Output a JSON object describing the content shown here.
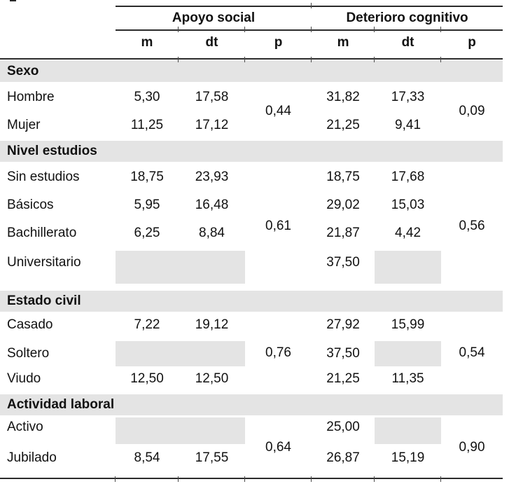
{
  "table": {
    "group_headers": [
      {
        "label": "Apoyo social"
      },
      {
        "label": "Deterioro cognitivo"
      }
    ],
    "sub_headers": [
      "m",
      "dt",
      "p",
      "m",
      "dt",
      "p"
    ],
    "colors": {
      "band_gray": "#e4e4e4",
      "rule": "#2b2b2b"
    },
    "sections": [
      {
        "title": "Sexo",
        "p_apoyo": "0,44",
        "p_deterioro": "0,09",
        "rows": [
          {
            "label": "Hombre",
            "apoyo_m": "5,30",
            "apoyo_dt": "17,58",
            "det_m": "31,82",
            "det_dt": "17,33"
          },
          {
            "label": "Mujer",
            "apoyo_m": "11,25",
            "apoyo_dt": "17,12",
            "det_m": "21,25",
            "det_dt": "9,41"
          }
        ]
      },
      {
        "title": "Nivel estudios",
        "p_apoyo": "0,61",
        "p_deterioro": "0,56",
        "rows": [
          {
            "label": "Sin estudios",
            "apoyo_m": "18,75",
            "apoyo_dt": "23,93",
            "det_m": "18,75",
            "det_dt": "17,68"
          },
          {
            "label": "Básicos",
            "apoyo_m": "5,95",
            "apoyo_dt": "16,48",
            "det_m": "29,02",
            "det_dt": "15,03"
          },
          {
            "label": "Bachillerato",
            "apoyo_m": "6,25",
            "apoyo_dt": "8,84",
            "det_m": "21,87",
            "det_dt": "4,42"
          },
          {
            "label": "Universitario",
            "apoyo_m": null,
            "apoyo_dt": null,
            "det_m": "37,50",
            "det_dt": null
          }
        ]
      },
      {
        "title": "Estado civil",
        "p_apoyo": "0,76",
        "p_deterioro": "0,54",
        "rows": [
          {
            "label": "Casado",
            "apoyo_m": "7,22",
            "apoyo_dt": "19,12",
            "det_m": "27,92",
            "det_dt": "15,99"
          },
          {
            "label": "Soltero",
            "apoyo_m": null,
            "apoyo_dt": null,
            "det_m": "37,50",
            "det_dt": null
          },
          {
            "label": "Viudo",
            "apoyo_m": "12,50",
            "apoyo_dt": "12,50",
            "det_m": "21,25",
            "det_dt": "11,35"
          }
        ]
      },
      {
        "title": "Actividad laboral",
        "p_apoyo": "0,64",
        "p_deterioro": "0,90",
        "rows": [
          {
            "label": "Activo",
            "apoyo_m": null,
            "apoyo_dt": null,
            "det_m": "25,00",
            "det_dt": null
          },
          {
            "label": "Jubilado",
            "apoyo_m": "8,54",
            "apoyo_dt": "17,55",
            "det_m": "26,87",
            "det_dt": "15,19"
          }
        ]
      }
    ]
  }
}
